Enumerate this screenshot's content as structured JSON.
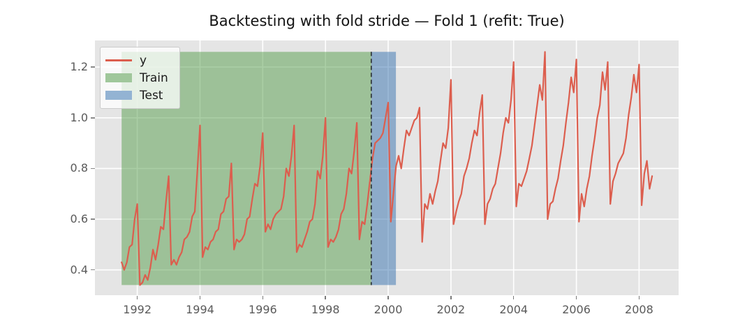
{
  "figure": {
    "background": "#ffffff",
    "plot_background": "#e5e5e5",
    "grid_color": "#ffffff",
    "tick_label_color": "#5a5a5a",
    "title_color": "#141414"
  },
  "chart_data": {
    "type": "line",
    "title": "Backtesting with fold stride — Fold 1 (refit: True)",
    "xlabel": "",
    "ylabel": "",
    "grid": true,
    "legend_position": "upper left",
    "xlim": [
      1990.65,
      2009.26
    ],
    "ylim": [
      0.3,
      1.305
    ],
    "x_ticks": [
      1992,
      1994,
      1996,
      1998,
      2000,
      2002,
      2004,
      2006,
      2008
    ],
    "x_tick_labels": [
      "1992",
      "1994",
      "1996",
      "1998",
      "2000",
      "2002",
      "2004",
      "2006",
      "2008"
    ],
    "y_ticks": [
      0.4,
      0.6,
      0.8,
      1.0,
      1.2
    ],
    "y_tick_labels": [
      "0.4",
      "0.6",
      "0.8",
      "1.0",
      "1.2"
    ],
    "series": [
      {
        "name": "y",
        "color": "#dc5e4e",
        "start": 1991.5,
        "step_years": 0.0833333,
        "values": [
          0.43,
          0.4,
          0.43,
          0.49,
          0.5,
          0.6,
          0.66,
          0.34,
          0.35,
          0.38,
          0.36,
          0.41,
          0.48,
          0.44,
          0.5,
          0.57,
          0.56,
          0.67,
          0.77,
          0.42,
          0.44,
          0.42,
          0.45,
          0.47,
          0.52,
          0.53,
          0.55,
          0.61,
          0.63,
          0.79,
          0.97,
          0.45,
          0.49,
          0.48,
          0.51,
          0.52,
          0.55,
          0.56,
          0.62,
          0.63,
          0.68,
          0.69,
          0.82,
          0.48,
          0.52,
          0.51,
          0.52,
          0.54,
          0.6,
          0.61,
          0.68,
          0.74,
          0.73,
          0.81,
          0.94,
          0.55,
          0.58,
          0.56,
          0.6,
          0.62,
          0.63,
          0.64,
          0.69,
          0.8,
          0.77,
          0.85,
          0.97,
          0.47,
          0.5,
          0.49,
          0.52,
          0.55,
          0.59,
          0.6,
          0.66,
          0.79,
          0.76,
          0.85,
          1.0,
          0.49,
          0.52,
          0.51,
          0.53,
          0.56,
          0.62,
          0.64,
          0.7,
          0.8,
          0.78,
          0.87,
          0.98,
          0.52,
          0.59,
          0.58,
          0.66,
          0.75,
          0.84,
          0.9,
          0.91,
          0.92,
          0.94,
          1.0,
          1.06,
          0.59,
          0.7,
          0.81,
          0.85,
          0.8,
          0.88,
          0.95,
          0.93,
          0.96,
          0.99,
          1.0,
          1.04,
          0.51,
          0.66,
          0.64,
          0.7,
          0.66,
          0.71,
          0.75,
          0.83,
          0.9,
          0.88,
          0.96,
          1.15,
          0.58,
          0.63,
          0.67,
          0.7,
          0.77,
          0.8,
          0.84,
          0.9,
          0.95,
          0.93,
          1.02,
          1.09,
          0.58,
          0.66,
          0.68,
          0.72,
          0.74,
          0.8,
          0.86,
          0.94,
          1.0,
          0.98,
          1.07,
          1.22,
          0.65,
          0.74,
          0.73,
          0.76,
          0.79,
          0.84,
          0.89,
          0.97,
          1.05,
          1.13,
          1.07,
          1.26,
          0.6,
          0.66,
          0.67,
          0.72,
          0.76,
          0.83,
          0.89,
          0.98,
          1.06,
          1.16,
          1.1,
          1.23,
          0.59,
          0.7,
          0.65,
          0.72,
          0.77,
          0.85,
          0.92,
          1.0,
          1.05,
          1.18,
          1.11,
          1.22,
          0.66,
          0.75,
          0.78,
          0.82,
          0.84,
          0.86,
          0.92,
          1.01,
          1.08,
          1.17,
          1.1,
          1.21,
          0.655,
          0.78,
          0.83,
          0.72,
          0.77
        ]
      }
    ],
    "regions": [
      {
        "name": "Train",
        "from": 1991.5,
        "to": 1999.46,
        "fill": "rgba(85,158,76,0.5)"
      },
      {
        "name": "Test",
        "from": 1999.46,
        "to": 2000.245,
        "fill": "rgba(54,113,176,0.5)"
      }
    ],
    "split_line": {
      "x": 1999.46,
      "color": "#2e3436",
      "style": "dashed"
    },
    "legend": [
      {
        "label": "y",
        "swatch": "line",
        "color": "#dc5e4e"
      },
      {
        "label": "Train",
        "swatch": "patch",
        "color": "#a0c79b"
      },
      {
        "label": "Test",
        "swatch": "patch",
        "color": "#93b3d3"
      }
    ]
  }
}
